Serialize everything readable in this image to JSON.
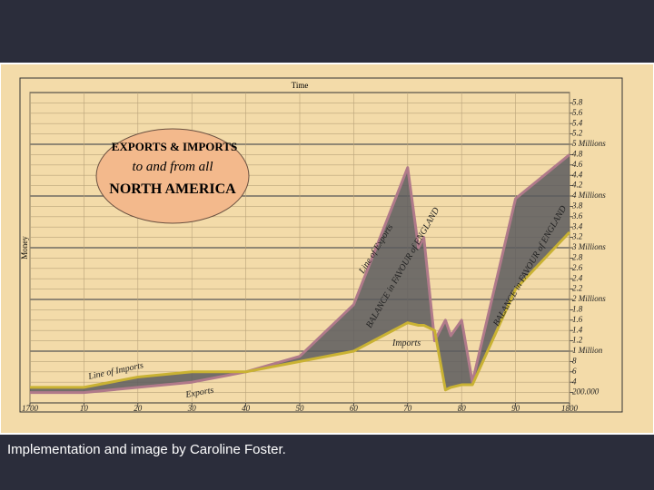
{
  "caption": "Implementation and image by Caroline Foster.",
  "chart_data": {
    "type": "line",
    "title": "EXPORTS & IMPORTS",
    "subtitle": "to and from all",
    "title_line3": "NORTH AMERICA",
    "x_label": "Time",
    "y_label": "Money",
    "annotations": [
      "Line of Exports",
      "Line of Imports",
      "Exports",
      "Imports",
      "BALANCE in FAVOUR of ENGLAND",
      "BALANCE in FAVOUR of ENGLAND"
    ],
    "x": [
      1700,
      1710,
      1720,
      1730,
      1740,
      1750,
      1760,
      1770,
      1772,
      1773,
      1775,
      1777,
      1778,
      1780,
      1782,
      1790,
      1800
    ],
    "series": [
      {
        "name": "Exports",
        "color": "#b07a8a",
        "values": [
          0.2,
          0.2,
          0.3,
          0.4,
          0.6,
          0.9,
          1.9,
          4.55,
          3.0,
          3.2,
          1.2,
          1.6,
          1.3,
          1.6,
          0.4,
          3.95,
          4.8
        ]
      },
      {
        "name": "Imports",
        "color": "#c9b233",
        "values": [
          0.3,
          0.3,
          0.5,
          0.6,
          0.6,
          0.8,
          1.0,
          1.55,
          1.5,
          1.5,
          1.4,
          0.25,
          0.3,
          0.35,
          0.35,
          2.2,
          3.3
        ]
      }
    ],
    "xlim": [
      1700,
      1800
    ],
    "xticks": [
      1700,
      {
        "value": 1710,
        "label": "10"
      },
      {
        "value": 1720,
        "label": "20"
      },
      {
        "value": 1730,
        "label": "30"
      },
      {
        "value": 1740,
        "label": "40"
      },
      {
        "value": 1750,
        "label": "50"
      },
      {
        "value": 1760,
        "label": "60"
      },
      {
        "value": 1770,
        "label": "70"
      },
      {
        "value": 1780,
        "label": "80"
      },
      {
        "value": 1790,
        "label": "90"
      },
      1800
    ],
    "ylim": [
      0,
      6
    ],
    "yticks": [
      {
        "value": 0.2,
        "label": "200.000"
      },
      {
        "value": 0.4,
        "label": "4"
      },
      {
        "value": 0.6,
        "label": "6"
      },
      {
        "value": 0.8,
        "label": "8"
      },
      {
        "value": 1,
        "label": "1 Million"
      },
      1.2,
      1.4,
      1.6,
      1.8,
      {
        "value": 2,
        "label": "2 Millions"
      },
      2.2,
      2.4,
      2.6,
      2.8,
      {
        "value": 3,
        "label": "3 Millions"
      },
      3.2,
      3.4,
      3.6,
      3.8,
      {
        "value": 4,
        "label": "4 Millions"
      },
      4.2,
      4.4,
      4.6,
      4.8,
      {
        "value": 5,
        "label": "5 Millions"
      },
      5.2,
      5.4,
      5.6,
      5.8
    ],
    "grid": true,
    "area_color": "#5a5a5e"
  }
}
